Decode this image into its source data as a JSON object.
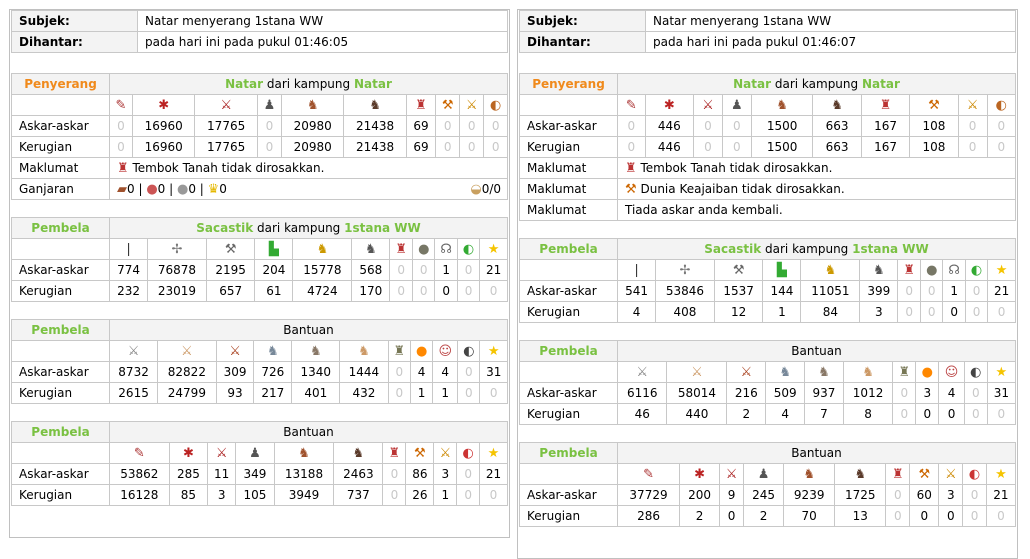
{
  "labels": {
    "subject": "Subjek:",
    "sent": "Dihantar:",
    "attacker": "Penyerang",
    "defender": "Pembela",
    "troops": "Askar-askar",
    "losses": "Kerugian",
    "info": "Maklumat",
    "reward": "Ganjaran",
    "from_village": "dari kampung",
    "reinforcement": "Bantuan"
  },
  "icons": {
    "att": [
      "clubswinger-icon",
      "spearman-icon",
      "axeman-icon",
      "scout-icon",
      "paladin-icon",
      "teutonic-knight-icon",
      "ram-icon",
      "catapult-icon",
      "chief-icon",
      "settler-icon"
    ],
    "def": [
      "phalanx-icon",
      "swordsman-icon",
      "pathfinder-icon",
      "theutates-thunder-icon",
      "druidrider-icon",
      "haeduan-icon",
      "ram-icon",
      "trebuchet-icon",
      "chieftain-icon",
      "settler-icon",
      "hero-icon"
    ],
    "b1": [
      "legionnaire-icon",
      "praetorian-icon",
      "imperian-icon",
      "equites-legati-icon",
      "equites-imperatoris-icon",
      "equites-caesaris-icon",
      "battering-ram-icon",
      "fire-catapult-icon",
      "senator-icon",
      "settler-icon",
      "hero-icon"
    ],
    "b2": [
      "clubswinger-icon",
      "spearman-icon",
      "axeman-icon",
      "scout-icon",
      "paladin-icon",
      "teutonic-knight-icon",
      "ram-icon",
      "catapult-icon",
      "chief-icon",
      "settler-icon",
      "hero-icon"
    ]
  },
  "reports": [
    {
      "subject": "Natar menyerang 1stana WW",
      "sent": "pada hari ini pada pukul 01:46:05",
      "attacker": {
        "player": "Natar",
        "village": "Natar",
        "troops": [
          0,
          16960,
          17765,
          0,
          20980,
          21438,
          69,
          0,
          0,
          0
        ],
        "losses": [
          0,
          16960,
          17765,
          0,
          20980,
          21438,
          69,
          0,
          0,
          0
        ],
        "info": [
          {
            "icon": "ram-icon",
            "text": "Tembok Tanah tidak dirosakkan."
          }
        ],
        "reward": {
          "wood": "0",
          "clay": "0",
          "iron": "0",
          "crop": "0",
          "carry": "0/0"
        }
      },
      "defenders": [
        {
          "player": "Sacastik",
          "village": "1stana WW",
          "icons": "def",
          "troops": [
            774,
            76878,
            2195,
            204,
            15778,
            568,
            0,
            0,
            1,
            0,
            21
          ],
          "losses": [
            232,
            23019,
            657,
            61,
            4724,
            170,
            0,
            0,
            "0",
            0,
            0
          ]
        },
        {
          "title": "Bantuan",
          "icons": "b1",
          "troops": [
            8732,
            82822,
            309,
            726,
            1340,
            1444,
            0,
            4,
            4,
            0,
            31
          ],
          "losses": [
            2615,
            24799,
            93,
            217,
            401,
            432,
            0,
            1,
            1,
            0,
            0
          ]
        },
        {
          "title": "Bantuan",
          "icons": "b2",
          "troops": [
            53862,
            285,
            11,
            349,
            13188,
            2463,
            0,
            86,
            3,
            0,
            21
          ],
          "losses": [
            16128,
            85,
            3,
            105,
            3949,
            737,
            0,
            26,
            1,
            0,
            0
          ]
        }
      ]
    },
    {
      "subject": "Natar menyerang 1stana WW",
      "sent": "pada hari ini pada pukul 01:46:07",
      "attacker": {
        "player": "Natar",
        "village": "Natar",
        "troops": [
          0,
          446,
          0,
          0,
          1500,
          663,
          167,
          108,
          0,
          0
        ],
        "losses": [
          0,
          446,
          0,
          0,
          1500,
          663,
          167,
          108,
          0,
          0
        ],
        "info": [
          {
            "icon": "ram-icon",
            "text": "Tembok Tanah tidak dirosakkan."
          },
          {
            "icon": "catapult-icon",
            "text": "Dunia Keajaiban tidak dirosakkan."
          },
          {
            "icon": "",
            "text": "Tiada askar anda kembali."
          }
        ]
      },
      "defenders": [
        {
          "player": "Sacastik",
          "village": "1stana WW",
          "icons": "def",
          "troops": [
            541,
            53846,
            1537,
            144,
            11051,
            399,
            0,
            0,
            1,
            0,
            21
          ],
          "losses": [
            4,
            408,
            12,
            1,
            84,
            3,
            0,
            0,
            "0",
            0,
            0
          ]
        },
        {
          "title": "Bantuan",
          "icons": "b1",
          "troops": [
            6116,
            58014,
            216,
            509,
            937,
            1012,
            0,
            3,
            4,
            0,
            31
          ],
          "losses": [
            46,
            440,
            2,
            4,
            7,
            8,
            0,
            "0",
            "0",
            0,
            0
          ]
        },
        {
          "title": "Bantuan",
          "icons": "b2x",
          "troops": [
            37729,
            200,
            9,
            245,
            9239,
            1725,
            0,
            60,
            3,
            0,
            21
          ],
          "losses": [
            286,
            2,
            "0",
            2,
            70,
            13,
            0,
            "0",
            "0",
            0,
            0
          ]
        }
      ]
    }
  ]
}
